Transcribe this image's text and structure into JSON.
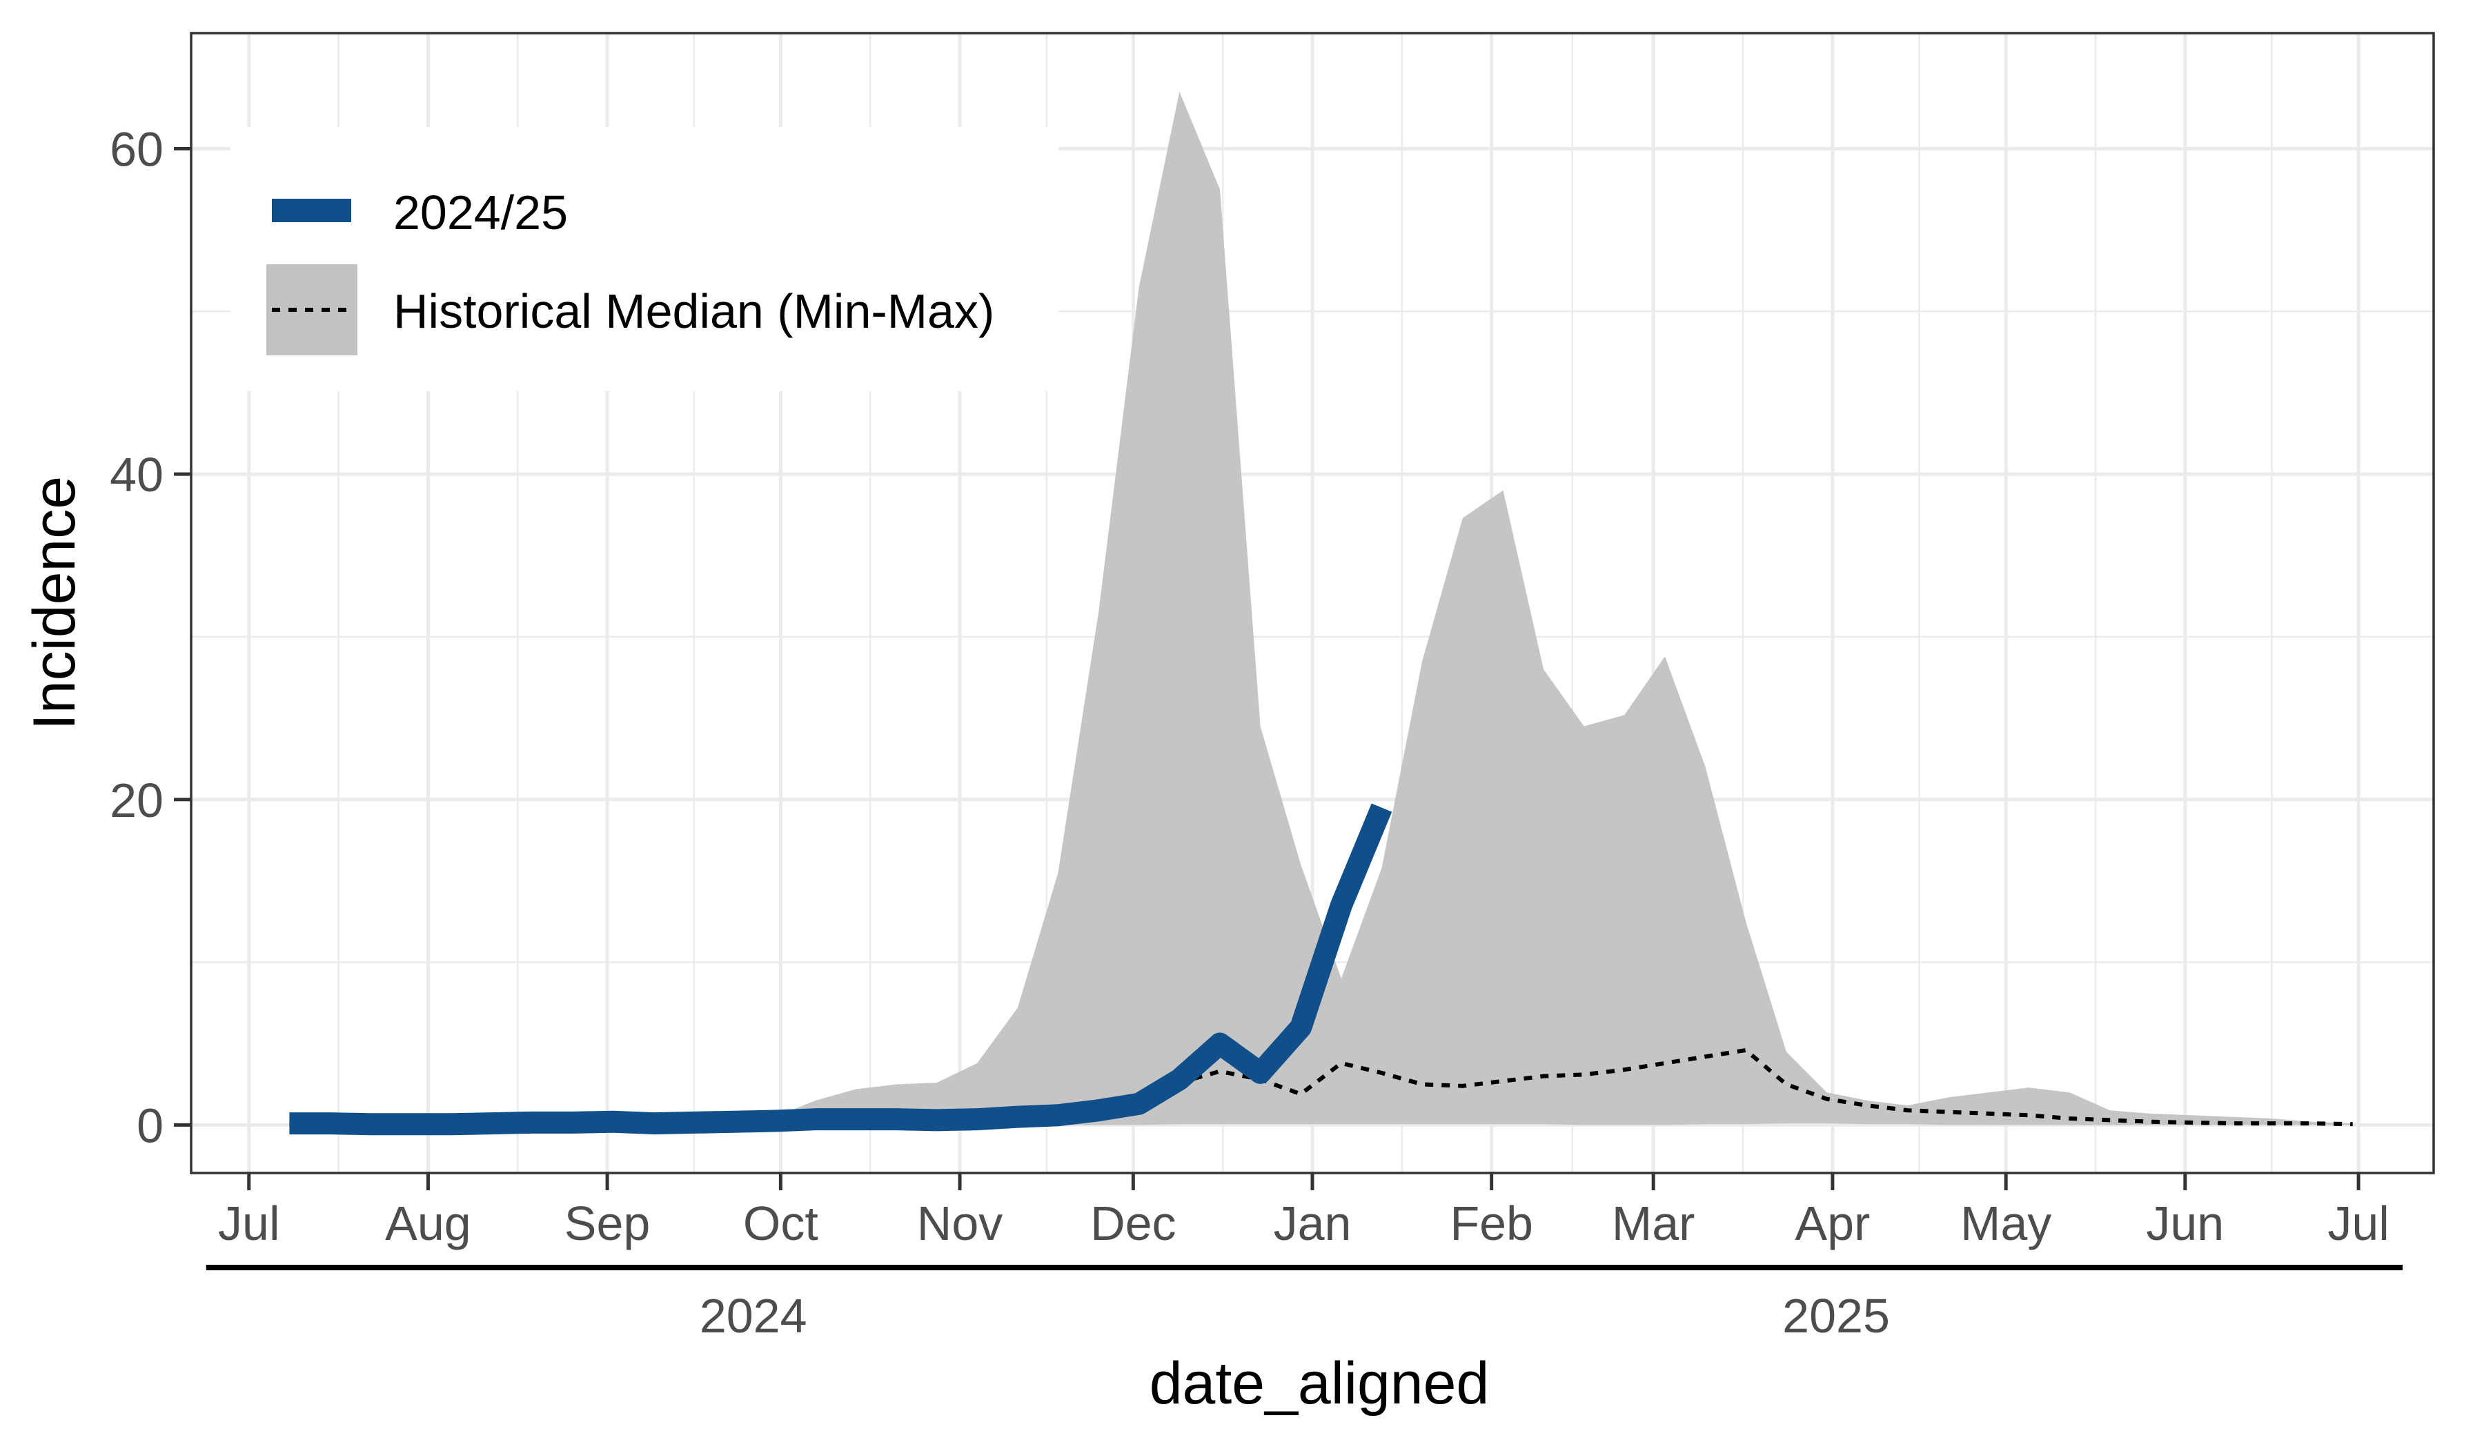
{
  "chart_data": {
    "type": "line",
    "title": "",
    "xlabel": "date_aligned",
    "ylabel": "Incidence",
    "xlim": [
      "2024-06-21",
      "2025-07-14"
    ],
    "ylim": [
      -2.95,
      67.1
    ],
    "grid": true,
    "legend_position": "top-left",
    "x_ticks": [
      "Jul",
      "Aug",
      "Sep",
      "Oct",
      "Nov",
      "Dec",
      "Jan",
      "Feb",
      "Mar",
      "Apr",
      "May",
      "Jun",
      "Jul"
    ],
    "x_tick_dates": [
      "2024-07-01",
      "2024-08-01",
      "2024-09-01",
      "2024-10-01",
      "2024-11-01",
      "2024-12-01",
      "2025-01-01",
      "2025-02-01",
      "2025-03-01",
      "2025-04-01",
      "2025-05-01",
      "2025-06-01",
      "2025-07-01"
    ],
    "year_labels": [
      {
        "label": "2024",
        "from": "2024-07-01",
        "to": "2024-12-31"
      },
      {
        "label": "2025",
        "from": "2025-01-01",
        "to": "2025-07-01"
      }
    ],
    "y_ticks": [
      0,
      20,
      40,
      60
    ],
    "y_tick_labels": [
      "0",
      "20",
      "40",
      "60"
    ],
    "legend": {
      "current_label": "2024/25",
      "historical_label": "Historical Median (Min-Max)"
    },
    "colors": {
      "current": "#114f8a",
      "band": "#c2c2c2",
      "median": "#000000"
    },
    "current_series": {
      "name": "2024/25",
      "x": [
        "2024-07-08",
        "2024-07-15",
        "2024-07-22",
        "2024-07-29",
        "2024-08-05",
        "2024-08-12",
        "2024-08-19",
        "2024-08-26",
        "2024-09-02",
        "2024-09-09",
        "2024-09-16",
        "2024-09-23",
        "2024-09-30",
        "2024-10-07",
        "2024-10-14",
        "2024-10-21",
        "2024-10-28",
        "2024-11-04",
        "2024-11-11",
        "2024-11-18",
        "2024-11-25",
        "2024-12-02",
        "2024-12-09",
        "2024-12-16",
        "2024-12-23",
        "2024-12-30",
        "2025-01-06",
        "2025-01-13"
      ],
      "y": [
        0.1,
        0.1,
        0.05,
        0.05,
        0.05,
        0.1,
        0.15,
        0.15,
        0.2,
        0.1,
        0.15,
        0.2,
        0.25,
        0.35,
        0.35,
        0.35,
        0.3,
        0.35,
        0.5,
        0.6,
        0.9,
        1.3,
        2.8,
        5.0,
        3.2,
        6.0,
        13.5,
        19.5
      ]
    },
    "historical": {
      "name": "Historical Median (Min-Max)",
      "x": [
        "2024-07-08",
        "2024-07-15",
        "2024-07-22",
        "2024-07-29",
        "2024-08-05",
        "2024-08-12",
        "2024-08-19",
        "2024-08-26",
        "2024-09-02",
        "2024-09-09",
        "2024-09-16",
        "2024-09-23",
        "2024-09-30",
        "2024-10-07",
        "2024-10-14",
        "2024-10-21",
        "2024-10-28",
        "2024-11-04",
        "2024-11-11",
        "2024-11-18",
        "2024-11-25",
        "2024-12-02",
        "2024-12-09",
        "2024-12-16",
        "2024-12-23",
        "2024-12-30",
        "2025-01-06",
        "2025-01-13",
        "2025-01-20",
        "2025-01-27",
        "2025-02-03",
        "2025-02-10",
        "2025-02-17",
        "2025-02-24",
        "2025-03-03",
        "2025-03-10",
        "2025-03-17",
        "2025-03-24",
        "2025-03-31",
        "2025-04-07",
        "2025-04-14",
        "2025-04-21",
        "2025-04-28",
        "2025-05-05",
        "2025-05-12",
        "2025-05-19",
        "2025-05-26",
        "2025-06-02",
        "2025-06-09",
        "2025-06-16",
        "2025-06-23",
        "2025-06-30"
      ],
      "median": [
        0.05,
        0.05,
        0.05,
        0.05,
        0.05,
        0.05,
        0.1,
        0.1,
        0.1,
        0.1,
        0.1,
        0.1,
        0.15,
        0.2,
        0.2,
        0.2,
        0.25,
        0.3,
        0.4,
        0.6,
        0.9,
        1.5,
        2.6,
        3.3,
        2.8,
        1.9,
        3.8,
        3.2,
        2.5,
        2.4,
        2.7,
        3.0,
        3.1,
        3.4,
        3.8,
        4.2,
        4.6,
        2.5,
        1.6,
        1.2,
        0.9,
        0.8,
        0.7,
        0.6,
        0.4,
        0.3,
        0.2,
        0.15,
        0.1,
        0.1,
        0.1,
        0.05
      ],
      "min": [
        0,
        0,
        0,
        0,
        0,
        0,
        0,
        0,
        0,
        0,
        0,
        0,
        0,
        0,
        0,
        0,
        0,
        0,
        0,
        0,
        0,
        0,
        0.05,
        0.05,
        0.05,
        0.05,
        0.05,
        0.05,
        0.05,
        0.05,
        0.05,
        0.05,
        0,
        0,
        0,
        0.05,
        0.05,
        0.1,
        0.1,
        0.05,
        0.05,
        0,
        0,
        0,
        0,
        0,
        0,
        0,
        0,
        0,
        0,
        0
      ],
      "max": [
        0.1,
        0.1,
        0.1,
        0.1,
        0.1,
        0.1,
        0.1,
        0.1,
        0.1,
        0.1,
        0.2,
        0.3,
        0.5,
        1.5,
        2.2,
        2.5,
        2.6,
        3.8,
        7.2,
        15.5,
        31.5,
        51.5,
        63.5,
        57.5,
        24.5,
        16,
        9,
        15.8,
        28.5,
        37.3,
        39,
        28,
        24.5,
        25.2,
        28.8,
        22,
        12.5,
        4.5,
        2,
        1.5,
        1.2,
        1.7,
        2.0,
        2.3,
        2.0,
        0.9,
        0.7,
        0.6,
        0.5,
        0.4,
        0.2,
        0.1
      ]
    }
  }
}
